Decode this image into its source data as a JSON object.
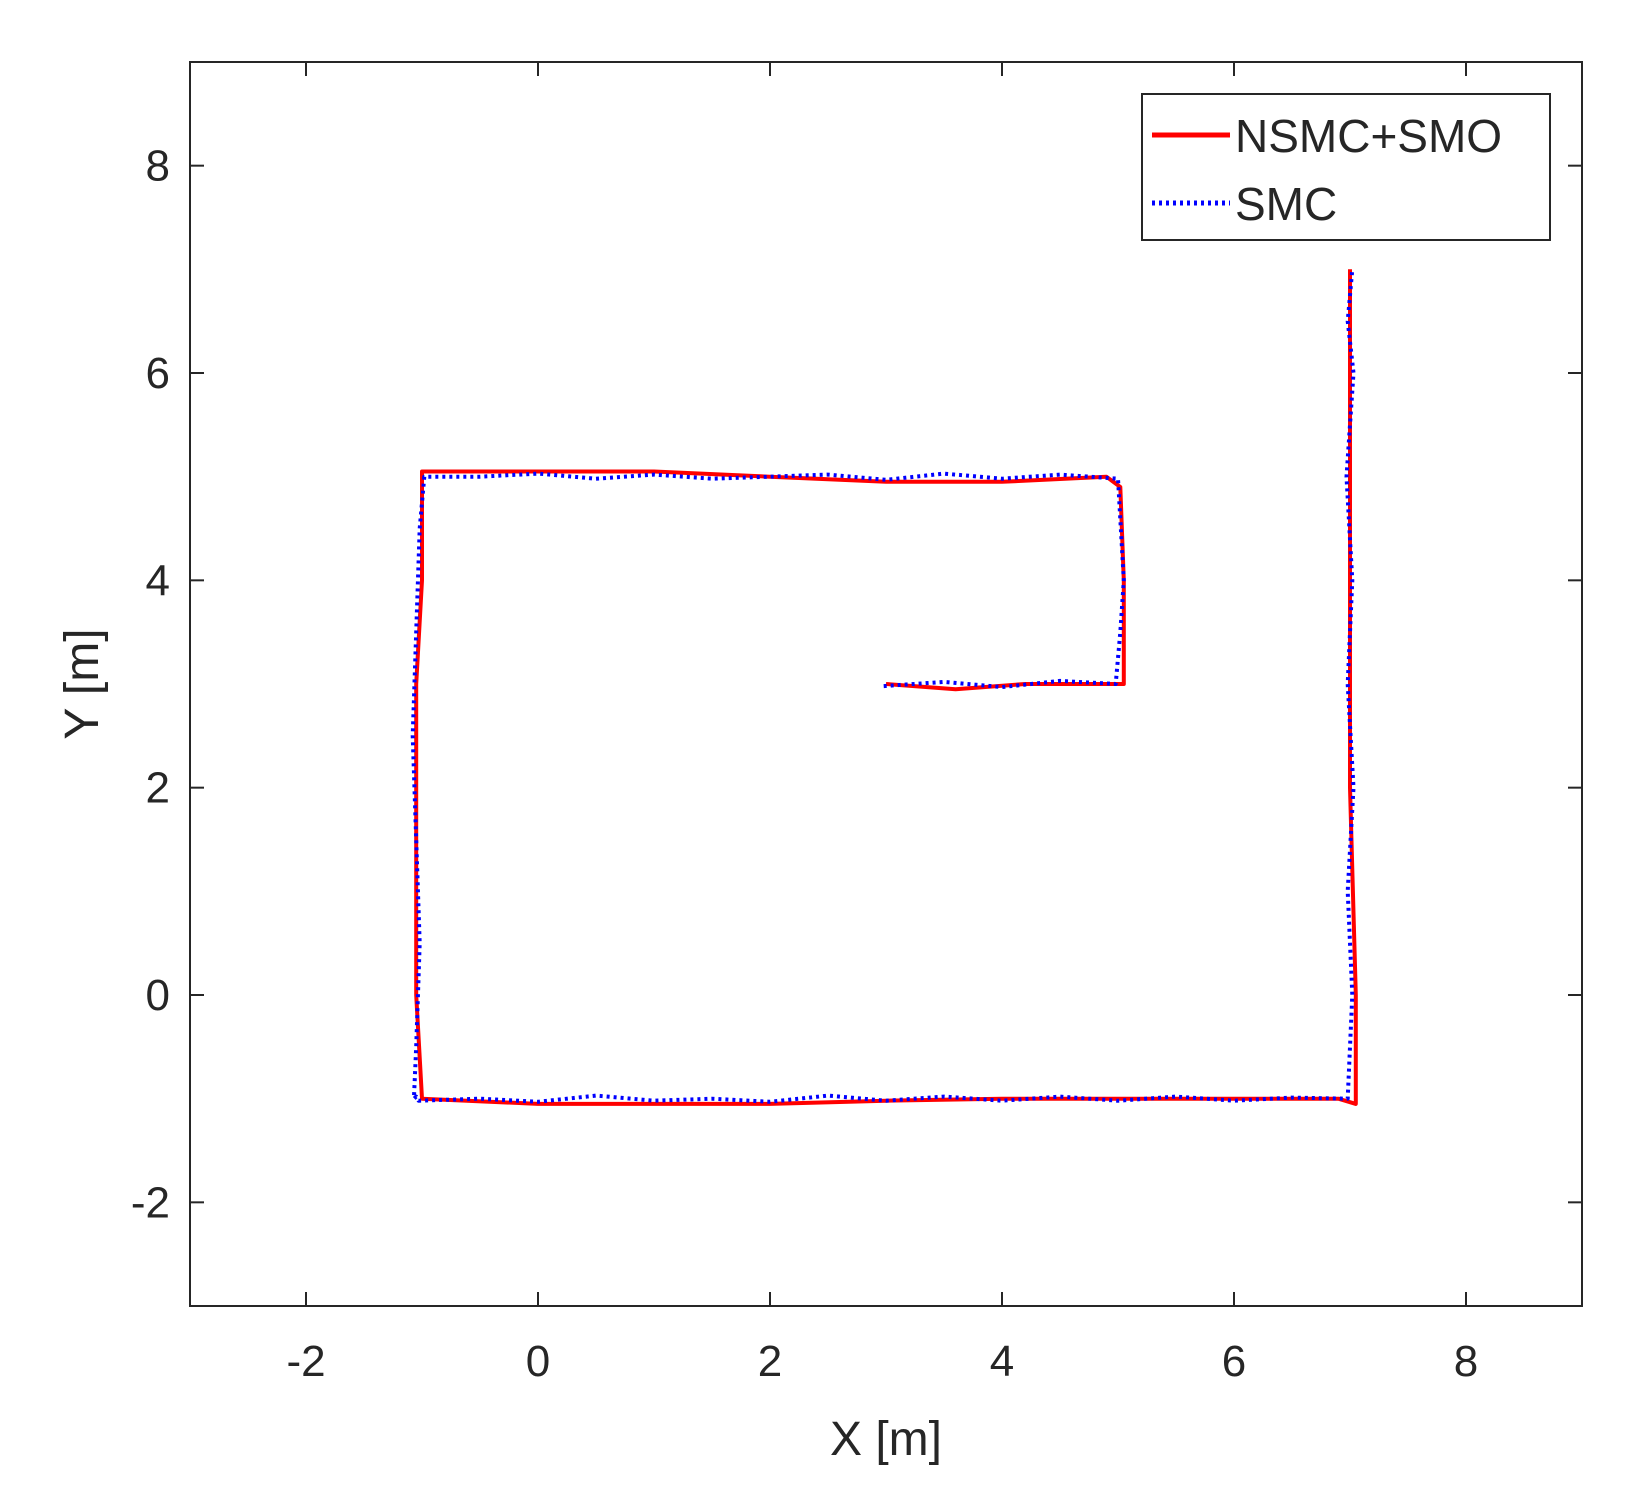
{
  "chart_data": {
    "type": "line",
    "title": "",
    "xlabel": "X [m]",
    "ylabel": "Y [m]",
    "xlim": [
      -3,
      9
    ],
    "ylim": [
      -3,
      9
    ],
    "xticks": [
      -2,
      0,
      2,
      4,
      6,
      8
    ],
    "yticks": [
      -2,
      0,
      2,
      4,
      6,
      8
    ],
    "xtick_labels": [
      "-2",
      "0",
      "2",
      "4",
      "6",
      "8"
    ],
    "ytick_labels": [
      "-2",
      "0",
      "2",
      "4",
      "6",
      "8"
    ],
    "grid": false,
    "legend": {
      "position": "top-right"
    },
    "series": [
      {
        "name": "NSMC+SMO",
        "color": "#ff0000",
        "style": "solid",
        "x": [
          3.0,
          3.6,
          4.2,
          4.8,
          5.05,
          5.05,
          5.02,
          4.9,
          4.0,
          3.0,
          2.0,
          1.0,
          0.0,
          -0.5,
          -1.0,
          -1.0,
          -1.05,
          -1.05,
          -1.05,
          -1.05,
          -1.0,
          0.0,
          1.0,
          2.0,
          3.0,
          4.0,
          5.0,
          6.0,
          6.9,
          7.05,
          7.05,
          7.0,
          7.0,
          7.0,
          7.0
        ],
        "y": [
          3.0,
          2.95,
          3.0,
          3.0,
          3.0,
          4.0,
          4.9,
          5.0,
          4.95,
          4.95,
          5.0,
          5.05,
          5.05,
          5.05,
          5.05,
          4.0,
          3.0,
          2.0,
          1.0,
          0.0,
          -1.0,
          -1.05,
          -1.05,
          -1.05,
          -1.02,
          -1.0,
          -1.0,
          -1.0,
          -1.0,
          -1.05,
          0.0,
          2.0,
          4.0,
          6.0,
          7.0
        ]
      },
      {
        "name": "SMC",
        "color": "#0000ff",
        "style": "dotted",
        "x": [
          2.98,
          3.5,
          4.0,
          4.5,
          4.98,
          5.02,
          5.05,
          5.0,
          4.5,
          4.0,
          3.5,
          3.0,
          2.5,
          2.0,
          1.5,
          1.0,
          0.5,
          0.0,
          -0.5,
          -0.98,
          -1.02,
          -1.05,
          -1.08,
          -1.05,
          -1.02,
          -1.05,
          -1.07,
          -1.05,
          -1.03,
          -0.5,
          0.0,
          0.5,
          1.0,
          1.5,
          2.0,
          2.5,
          3.0,
          3.5,
          4.0,
          4.5,
          5.0,
          5.5,
          6.0,
          6.5,
          6.98,
          7.02,
          6.98,
          7.03,
          6.98,
          7.02,
          6.97,
          7.03,
          6.98,
          7.02
        ],
        "y": [
          2.98,
          3.02,
          2.97,
          3.03,
          3.0,
          3.5,
          4.0,
          4.98,
          5.02,
          4.98,
          5.03,
          4.97,
          5.02,
          5.0,
          4.98,
          5.02,
          4.98,
          5.03,
          5.0,
          5.0,
          4.5,
          3.5,
          2.5,
          1.5,
          0.5,
          -0.5,
          -1.0,
          -0.98,
          -1.02,
          -1.0,
          -1.03,
          -0.97,
          -1.02,
          -1.0,
          -1.03,
          -0.97,
          -1.02,
          -0.98,
          -1.02,
          -0.98,
          -1.02,
          -0.98,
          -1.02,
          -0.99,
          -1.0,
          0.0,
          1.0,
          2.0,
          3.0,
          4.0,
          5.0,
          6.0,
          6.5,
          7.0
        ]
      }
    ]
  }
}
